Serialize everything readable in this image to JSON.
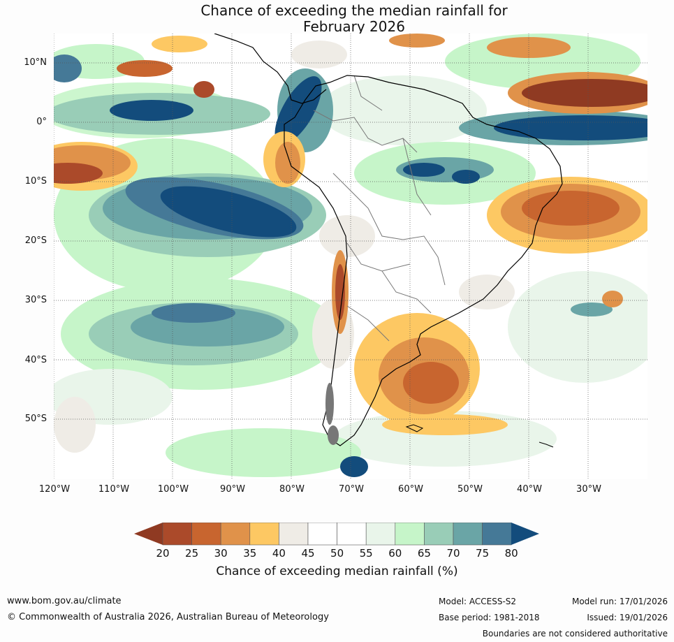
{
  "title": {
    "line1": "Chance of exceeding the median rainfall for",
    "line2": "February 2026"
  },
  "map": {
    "lat_labels": [
      "10°N",
      "0°",
      "10°S",
      "20°S",
      "30°S",
      "40°S",
      "50°S"
    ],
    "lon_labels": [
      "120°W",
      "110°W",
      "100°W",
      "90°W",
      "80°W",
      "70°W",
      "60°W",
      "50°W",
      "40°W",
      "30°W"
    ]
  },
  "colorbar": {
    "ticks": [
      "20",
      "25",
      "30",
      "35",
      "40",
      "45",
      "50",
      "55",
      "60",
      "65",
      "70",
      "75",
      "80"
    ],
    "colors": [
      "#ab4a2a",
      "#c8652f",
      "#e0924a",
      "#fdc863",
      "#efece6",
      "#ffffff",
      "#ffffff",
      "#e9f5ea",
      "#c6f5c9",
      "#99cdb7",
      "#6aa5a6",
      "#457997"
    ],
    "low_color": "#8f3a22",
    "high_color": "#134c7c",
    "label": "Chance of exceeding median rainfall (%)"
  },
  "footer": {
    "website": "www.bom.gov.au/climate",
    "copyright": "© Commonwealth of Australia 2026, Australian Bureau of Meteorology",
    "model": "Model: ACCESS-S2",
    "base_period": "Base period: 1981-2018",
    "model_run": "Model run: 17/01/2026",
    "issued": "Issued: 19/01/2026",
    "disclaimer": "Boundaries are not considered authoritative"
  }
}
